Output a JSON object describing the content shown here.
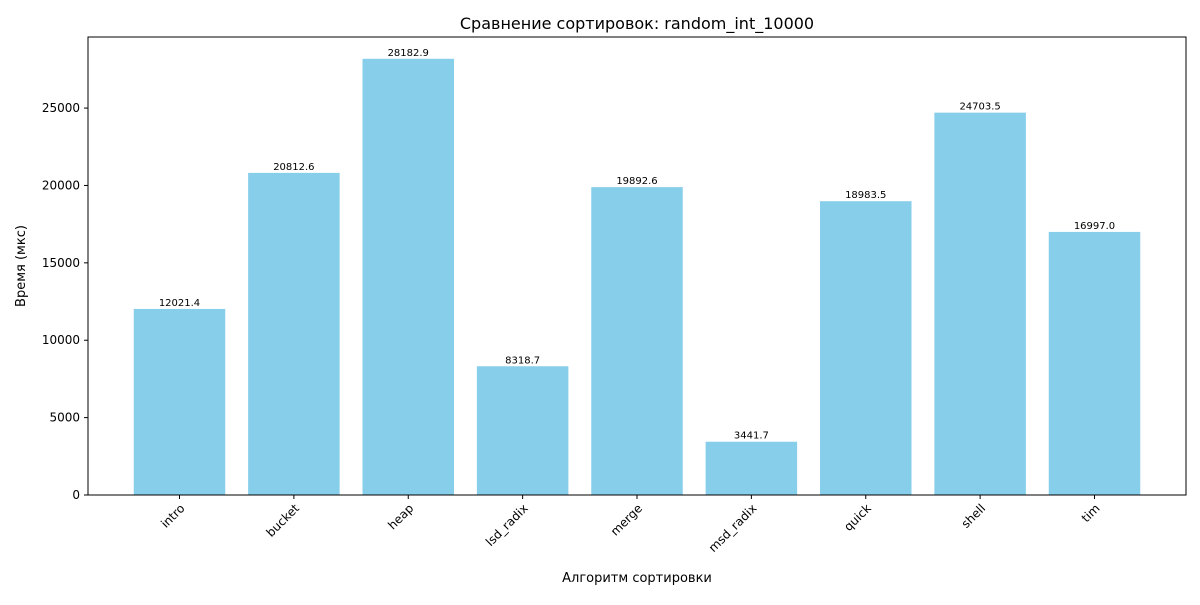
{
  "chart_data": {
    "type": "bar",
    "title": "Сравнение сортировок: random_int_10000",
    "xlabel": "Алгоритм сортировки",
    "ylabel": "Время (мкс)",
    "categories": [
      "intro",
      "bucket",
      "heap",
      "lsd_radix",
      "merge",
      "msd_radix",
      "quick",
      "shell",
      "tim"
    ],
    "values": [
      12021.4,
      20812.6,
      28182.9,
      8318.7,
      19892.6,
      3441.7,
      18983.5,
      24703.5,
      16997.0
    ],
    "value_labels": [
      "12021.4",
      "20812.6",
      "28182.9",
      "8318.7",
      "19892.6",
      "3441.7",
      "18983.5",
      "24703.5",
      "16997.0"
    ],
    "ylim": [
      0,
      29592
    ],
    "yticks": [
      0,
      5000,
      10000,
      15000,
      20000,
      25000
    ],
    "ytick_labels": [
      "0",
      "5000",
      "10000",
      "15000",
      "20000",
      "25000"
    ],
    "bar_color": "#87ceeb",
    "grid": false,
    "xtick_rotation_deg": 45
  }
}
